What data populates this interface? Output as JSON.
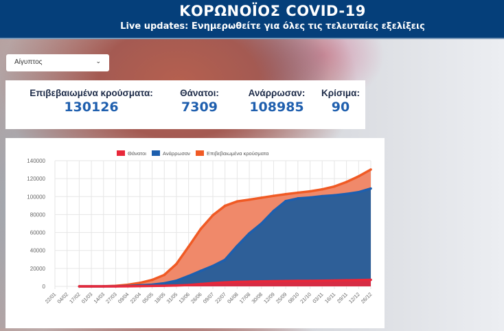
{
  "header": {
    "title": "ΚΟΡΩΝΟΪΟΣ COVID-19",
    "subtitle": "Live updates: Ενημερωθείτε για όλες τις τελευταίες εξελίξεις"
  },
  "country_select": {
    "value": "Αίγυπτος",
    "icon": "chevron-down-icon"
  },
  "stats": [
    {
      "label": "Επιβεβαιωμένα κρούσματα:",
      "value": "130126"
    },
    {
      "label": "Θάνατοι:",
      "value": "7309"
    },
    {
      "label": "Ανάρρωσαν:",
      "value": "108985"
    },
    {
      "label": "Κρίσιμα:",
      "value": "90"
    }
  ],
  "chart_data": {
    "type": "area",
    "title": "",
    "legend_position": "top",
    "grid": true,
    "ylim": [
      0,
      140000
    ],
    "yticks": [
      "0",
      "20000",
      "40000",
      "60000",
      "80000",
      "100000",
      "120000",
      "140000"
    ],
    "categories": [
      "22/01",
      "04/02",
      "17/02",
      "01/03",
      "14/03",
      "27/03",
      "09/04",
      "22/04",
      "05/05",
      "18/05",
      "31/05",
      "13/06",
      "26/06",
      "09/07",
      "22/07",
      "04/08",
      "17/08",
      "30/08",
      "12/09",
      "25/09",
      "08/10",
      "21/10",
      "03/11",
      "16/11",
      "29/11",
      "12/12",
      "26/12"
    ],
    "series": [
      {
        "name": "Θάνατοι",
        "color": "#e8283a",
        "fill": "#d62c44",
        "values": [
          null,
          null,
          0,
          0,
          2,
          30,
          135,
          287,
          469,
          645,
          959,
          1575,
          2620,
          3617,
          4440,
          5000,
          5300,
          5500,
          5700,
          5950,
          6100,
          6150,
          6300,
          6500,
          6750,
          7000,
          7309
        ]
      },
      {
        "name": "Ανάρρωσαν",
        "color": "#1d5fae",
        "fill": "#2e5f98",
        "values": [
          null,
          null,
          0,
          1,
          21,
          128,
          411,
          1117,
          1887,
          3440,
          6297,
          11529,
          17268,
          22753,
          29600,
          45000,
          59000,
          70000,
          84000,
          95000,
          98000,
          99000,
          100500,
          101500,
          103000,
          105000,
          108985
        ]
      },
      {
        "name": "Επιβεβαιωμένα κρούσματα",
        "color": "#f05a24",
        "fill": "#f0896a",
        "values": [
          null,
          null,
          1,
          2,
          109,
          536,
          1794,
          3891,
          7201,
          12764,
          24985,
          44167,
          63923,
          79254,
          89745,
          94640,
          96590,
          98727,
          100856,
          102736,
          104387,
          105883,
          108122,
          111284,
          116303,
          122609,
          130126
        ]
      }
    ]
  }
}
